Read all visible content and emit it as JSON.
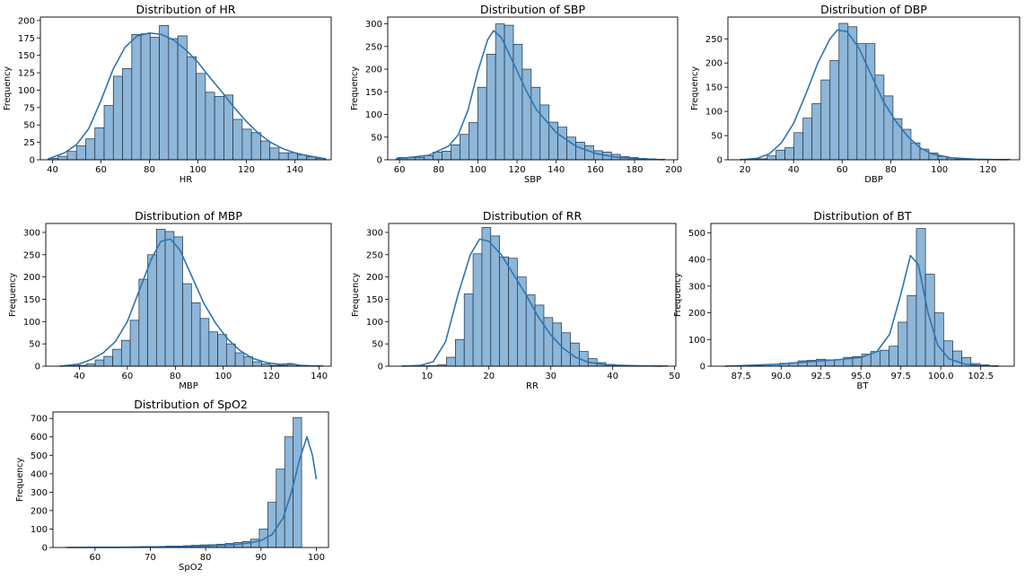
{
  "colors": {
    "bar_fill": "#8db6d8",
    "bar_edge": "#1f2f3f",
    "kde": "#2e75b0",
    "axis": "#000000"
  },
  "chart_data": [
    {
      "type": "bar",
      "title": "Distribution of HR",
      "xlabel": "HR",
      "ylabel": "Frequency",
      "xlim": [
        35,
        155
      ],
      "ylim": [
        0,
        205
      ],
      "xticks": [
        40,
        60,
        80,
        100,
        120,
        140
      ],
      "xtick_labels": [
        "40",
        "60",
        "80",
        "100",
        "120",
        "140"
      ],
      "yticks": [
        0,
        25,
        50,
        75,
        100,
        125,
        150,
        175,
        200
      ],
      "ytick_labels": [
        "0",
        "25",
        "50",
        "75",
        "100",
        "125",
        "150",
        "175",
        "200"
      ],
      "bin_start": 38.5,
      "bin_width": 3.8,
      "values": [
        2,
        5,
        12,
        20,
        30,
        46,
        78,
        120,
        131,
        180,
        181,
        176,
        193,
        174,
        178,
        148,
        124,
        97,
        91,
        93,
        58,
        44,
        39,
        27,
        17,
        10,
        10,
        7,
        4,
        2
      ],
      "kde": [
        [
          38,
          1
        ],
        [
          45,
          10
        ],
        [
          50,
          22
        ],
        [
          55,
          45
        ],
        [
          60,
          85
        ],
        [
          65,
          130
        ],
        [
          70,
          162
        ],
        [
          75,
          178
        ],
        [
          80,
          182
        ],
        [
          85,
          180
        ],
        [
          90,
          172
        ],
        [
          95,
          158
        ],
        [
          100,
          140
        ],
        [
          105,
          118
        ],
        [
          110,
          97
        ],
        [
          115,
          75
        ],
        [
          120,
          55
        ],
        [
          125,
          38
        ],
        [
          130,
          25
        ],
        [
          135,
          16
        ],
        [
          140,
          10
        ],
        [
          145,
          6
        ],
        [
          150,
          3
        ],
        [
          153,
          1
        ]
      ]
    },
    {
      "type": "bar",
      "title": "Distribution of SBP",
      "xlabel": "SBP",
      "ylabel": "Frequency",
      "xlim": [
        54,
        202
      ],
      "ylim": [
        0,
        315
      ],
      "xticks": [
        60,
        80,
        100,
        120,
        140,
        160,
        180,
        200
      ],
      "xtick_labels": [
        "60",
        "80",
        "100",
        "120",
        "140",
        "160",
        "180",
        "200"
      ],
      "yticks": [
        0,
        50,
        100,
        150,
        200,
        250,
        300
      ],
      "ytick_labels": [
        "0",
        "50",
        "100",
        "150",
        "200",
        "250",
        "300"
      ],
      "bin_start": 59,
      "bin_width": 4.55,
      "values": [
        5,
        5,
        5,
        9,
        17,
        19,
        33,
        56,
        82,
        160,
        233,
        300,
        297,
        255,
        200,
        160,
        121,
        83,
        72,
        50,
        39,
        31,
        20,
        17,
        12,
        7,
        5,
        3,
        2,
        1
      ],
      "kde": [
        [
          58,
          2
        ],
        [
          65,
          5
        ],
        [
          75,
          10
        ],
        [
          85,
          30
        ],
        [
          90,
          55
        ],
        [
          95,
          110
        ],
        [
          100,
          195
        ],
        [
          105,
          265
        ],
        [
          108,
          285
        ],
        [
          112,
          270
        ],
        [
          118,
          215
        ],
        [
          125,
          150
        ],
        [
          130,
          110
        ],
        [
          140,
          60
        ],
        [
          150,
          30
        ],
        [
          160,
          14
        ],
        [
          170,
          6
        ],
        [
          180,
          3
        ],
        [
          195,
          0
        ]
      ]
    },
    {
      "type": "bar",
      "title": "Distribution of DBP",
      "xlabel": "DBP",
      "ylabel": "Frequency",
      "xlim": [
        13,
        133
      ],
      "ylim": [
        0,
        295
      ],
      "xticks": [
        20,
        40,
        60,
        80,
        100,
        120
      ],
      "xtick_labels": [
        "20",
        "40",
        "60",
        "80",
        "100",
        "120"
      ],
      "yticks": [
        0,
        50,
        100,
        150,
        200,
        250
      ],
      "ytick_labels": [
        "0",
        "50",
        "100",
        "150",
        "200",
        "250"
      ],
      "bin_start": 18,
      "bin_width": 3.7,
      "values": [
        1,
        1,
        2,
        8,
        20,
        25,
        56,
        86,
        116,
        165,
        205,
        282,
        275,
        240,
        240,
        175,
        132,
        85,
        63,
        35,
        22,
        14,
        7,
        4,
        2,
        1,
        1,
        1,
        1,
        1
      ],
      "kde": [
        [
          18,
          0
        ],
        [
          25,
          3
        ],
        [
          30,
          12
        ],
        [
          35,
          35
        ],
        [
          40,
          75
        ],
        [
          45,
          135
        ],
        [
          50,
          200
        ],
        [
          55,
          250
        ],
        [
          58,
          268
        ],
        [
          62,
          265
        ],
        [
          67,
          230
        ],
        [
          72,
          175
        ],
        [
          77,
          120
        ],
        [
          82,
          80
        ],
        [
          87,
          48
        ],
        [
          92,
          25
        ],
        [
          97,
          12
        ],
        [
          105,
          4
        ],
        [
          115,
          1
        ],
        [
          128,
          0
        ]
      ]
    },
    {
      "type": "bar",
      "title": "Distribution of MBP",
      "xlabel": "MBP",
      "ylabel": "Frequency",
      "xlim": [
        26,
        145
      ],
      "ylim": [
        0,
        320
      ],
      "xticks": [
        40,
        60,
        80,
        100,
        120,
        140
      ],
      "xtick_labels": [
        "40",
        "60",
        "80",
        "100",
        "120",
        "140"
      ],
      "yticks": [
        0,
        50,
        100,
        150,
        200,
        250,
        300
      ],
      "ytick_labels": [
        "0",
        "50",
        "100",
        "150",
        "200",
        "250",
        "300"
      ],
      "bin_start": 32,
      "bin_width": 3.65,
      "values": [
        1,
        1,
        2,
        5,
        14,
        22,
        38,
        58,
        103,
        195,
        250,
        307,
        302,
        290,
        185,
        142,
        107,
        77,
        71,
        50,
        30,
        21,
        10,
        5,
        2,
        2,
        4,
        2,
        1,
        1
      ],
      "kde": [
        [
          32,
          0
        ],
        [
          40,
          5
        ],
        [
          45,
          15
        ],
        [
          50,
          30
        ],
        [
          55,
          55
        ],
        [
          60,
          100
        ],
        [
          65,
          170
        ],
        [
          70,
          240
        ],
        [
          74,
          280
        ],
        [
          78,
          285
        ],
        [
          82,
          260
        ],
        [
          87,
          200
        ],
        [
          92,
          140
        ],
        [
          97,
          95
        ],
        [
          102,
          60
        ],
        [
          107,
          35
        ],
        [
          112,
          18
        ],
        [
          118,
          8
        ],
        [
          124,
          4
        ],
        [
          128,
          6
        ],
        [
          132,
          2
        ],
        [
          140,
          0
        ]
      ]
    },
    {
      "type": "bar",
      "title": "Distribution of RR",
      "xlabel": "RR",
      "ylabel": "Frequency",
      "xlim": [
        3.8,
        50.2
      ],
      "ylim": [
        0,
        320
      ],
      "xticks": [
        10,
        20,
        30,
        40,
        50
      ],
      "xtick_labels": [
        "10",
        "20",
        "30",
        "40",
        "50"
      ],
      "yticks": [
        0,
        50,
        100,
        150,
        200,
        250,
        300
      ],
      "ytick_labels": [
        "0",
        "50",
        "100",
        "150",
        "200",
        "250",
        "300"
      ],
      "bin_start": 6,
      "bin_width": 1.43,
      "values": [
        1,
        1,
        1,
        1,
        3,
        20,
        60,
        162,
        252,
        311,
        292,
        245,
        242,
        200,
        160,
        137,
        109,
        97,
        75,
        52,
        33,
        17,
        8,
        4,
        2,
        1,
        1,
        1,
        1,
        1
      ],
      "kde": [
        [
          6,
          0
        ],
        [
          9,
          2
        ],
        [
          11,
          10
        ],
        [
          13,
          55
        ],
        [
          15,
          160
        ],
        [
          17,
          250
        ],
        [
          18.5,
          285
        ],
        [
          20,
          280
        ],
        [
          22,
          250
        ],
        [
          24,
          205
        ],
        [
          26,
          160
        ],
        [
          28,
          110
        ],
        [
          30,
          70
        ],
        [
          32,
          40
        ],
        [
          34,
          20
        ],
        [
          36,
          9
        ],
        [
          39,
          3
        ],
        [
          44,
          1
        ],
        [
          48,
          0
        ]
      ]
    },
    {
      "type": "bar",
      "title": "Distribution of BT",
      "xlabel": "BT",
      "ylabel": "Frequency",
      "xlim": [
        85.6,
        104.6
      ],
      "ylim": [
        0,
        535
      ],
      "xticks": [
        87.5,
        90.0,
        92.5,
        95.0,
        97.5,
        100.0,
        102.5
      ],
      "xtick_labels": [
        "87.5",
        "90.0",
        "92.5",
        "95.0",
        "97.5",
        "100.0",
        "102.5"
      ],
      "yticks": [
        0,
        100,
        200,
        300,
        400,
        500
      ],
      "ytick_labels": [
        "0",
        "100",
        "200",
        "300",
        "400",
        "500"
      ],
      "bin_start": 86.5,
      "bin_width": 0.57,
      "values": [
        1,
        1,
        2,
        2,
        5,
        7,
        11,
        13,
        20,
        22,
        26,
        24,
        25,
        33,
        36,
        45,
        55,
        60,
        75,
        165,
        265,
        516,
        345,
        200,
        95,
        57,
        33,
        10,
        5,
        2
      ],
      "kde": [
        [
          86.5,
          0
        ],
        [
          88,
          3
        ],
        [
          90,
          8
        ],
        [
          92,
          18
        ],
        [
          93.5,
          24
        ],
        [
          95,
          33
        ],
        [
          96,
          55
        ],
        [
          96.8,
          120
        ],
        [
          97.5,
          270
        ],
        [
          98.1,
          415
        ],
        [
          98.6,
          380
        ],
        [
          99.2,
          200
        ],
        [
          99.8,
          80
        ],
        [
          100.5,
          28
        ],
        [
          101.5,
          8
        ],
        [
          102.5,
          2
        ],
        [
          103.5,
          0
        ]
      ]
    },
    {
      "type": "bar",
      "title": "Distribution of SpO2",
      "xlabel": "SpO2",
      "ylabel": "Frequency",
      "xlim": [
        52.4,
        102.2
      ],
      "ylim": [
        0,
        735
      ],
      "xticks": [
        60,
        70,
        80,
        90,
        100
      ],
      "xtick_labels": [
        "60",
        "70",
        "80",
        "90",
        "100"
      ],
      "yticks": [
        0,
        100,
        200,
        300,
        400,
        500,
        600,
        700
      ],
      "ytick_labels": [
        "0",
        "100",
        "200",
        "300",
        "400",
        "500",
        "600",
        "700"
      ],
      "bin_start": 54.5,
      "bin_width": 1.53,
      "values": [
        1,
        1,
        1,
        1,
        2,
        2,
        2,
        3,
        4,
        5,
        5,
        6,
        8,
        8,
        10,
        12,
        14,
        15,
        18,
        22,
        27,
        32,
        45,
        100,
        245,
        425,
        600,
        705
      ],
      "kde": [
        [
          55,
          0
        ],
        [
          65,
          1
        ],
        [
          70,
          3
        ],
        [
          75,
          5
        ],
        [
          80,
          8
        ],
        [
          85,
          15
        ],
        [
          88,
          25
        ],
        [
          90,
          38
        ],
        [
          92,
          70
        ],
        [
          94,
          160
        ],
        [
          95.5,
          300
        ],
        [
          97,
          480
        ],
        [
          98.3,
          600
        ],
        [
          99.3,
          500
        ],
        [
          100,
          370
        ]
      ]
    }
  ]
}
